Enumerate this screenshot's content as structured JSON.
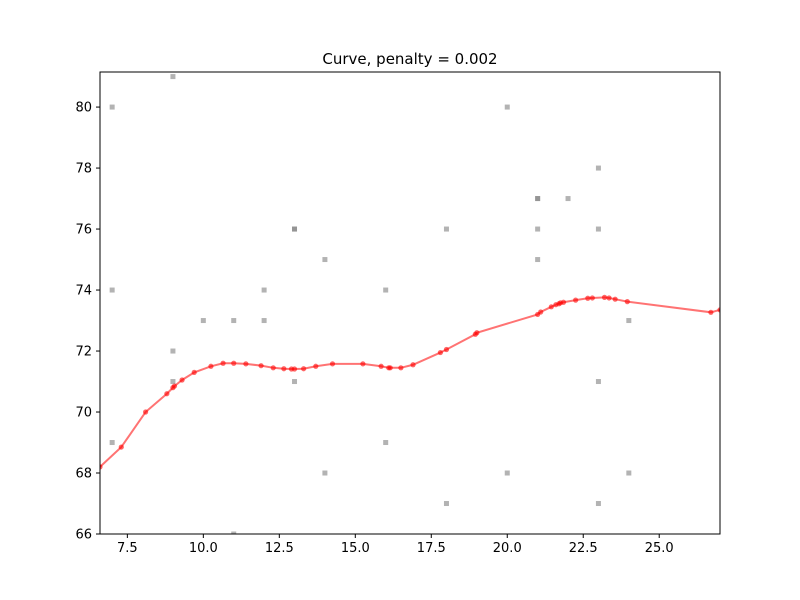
{
  "chart_data": {
    "type": "scatter",
    "title": "Curve, penalty = 0.002",
    "xlabel": "",
    "ylabel": "",
    "xlim": [
      6.6,
      27.0
    ],
    "ylim": [
      66,
      81.15
    ],
    "xticks": [
      7.5,
      10.0,
      12.5,
      15.0,
      17.5,
      20.0,
      22.5,
      25.0
    ],
    "xtick_labels": [
      "7.5",
      "10.0",
      "12.5",
      "15.0",
      "17.5",
      "20.0",
      "22.5",
      "25.0"
    ],
    "yticks": [
      66,
      68,
      70,
      72,
      74,
      76,
      78,
      80
    ],
    "ytick_labels": [
      "66",
      "68",
      "70",
      "72",
      "74",
      "76",
      "78",
      "80"
    ],
    "grid": false,
    "series": [
      {
        "kind": "scatter",
        "color": "#808080",
        "marker": "square",
        "points": [
          [
            7,
            80
          ],
          [
            7,
            74
          ],
          [
            7,
            69
          ],
          [
            9,
            81
          ],
          [
            9,
            72
          ],
          [
            9,
            71
          ],
          [
            10,
            73
          ],
          [
            11,
            73
          ],
          [
            11,
            66
          ],
          [
            12,
            74
          ],
          [
            12,
            73
          ],
          [
            13,
            76
          ],
          [
            13,
            76
          ],
          [
            13,
            71
          ],
          [
            14,
            75
          ],
          [
            14,
            68
          ],
          [
            16,
            74
          ],
          [
            16,
            69
          ],
          [
            18,
            76
          ],
          [
            18,
            67
          ],
          [
            20,
            80
          ],
          [
            20,
            68
          ],
          [
            21,
            77
          ],
          [
            21,
            77
          ],
          [
            21,
            76
          ],
          [
            21,
            75
          ],
          [
            22,
            77
          ],
          [
            23,
            78
          ],
          [
            23,
            76
          ],
          [
            23,
            71
          ],
          [
            23,
            67
          ],
          [
            24,
            73
          ],
          [
            24,
            68
          ]
        ]
      },
      {
        "kind": "line",
        "color": "#ff0000",
        "marker": "circle",
        "points": [
          [
            6.6,
            68.2
          ],
          [
            7.3,
            68.85
          ],
          [
            8.1,
            70.0
          ],
          [
            8.8,
            70.6
          ],
          [
            9.0,
            70.8
          ],
          [
            9.05,
            70.85
          ],
          [
            9.3,
            71.05
          ],
          [
            9.7,
            71.3
          ],
          [
            10.25,
            71.5
          ],
          [
            10.65,
            71.6
          ],
          [
            11.0,
            71.6
          ],
          [
            11.4,
            71.58
          ],
          [
            11.9,
            71.52
          ],
          [
            12.3,
            71.45
          ],
          [
            12.65,
            71.42
          ],
          [
            12.9,
            71.41
          ],
          [
            13.0,
            71.41
          ],
          [
            13.3,
            71.42
          ],
          [
            13.7,
            71.5
          ],
          [
            14.25,
            71.58
          ],
          [
            15.25,
            71.58
          ],
          [
            15.85,
            71.5
          ],
          [
            16.1,
            71.45
          ],
          [
            16.15,
            71.45
          ],
          [
            16.5,
            71.45
          ],
          [
            16.9,
            71.55
          ],
          [
            17.8,
            71.95
          ],
          [
            18.0,
            72.05
          ],
          [
            18.95,
            72.55
          ],
          [
            19.0,
            72.6
          ],
          [
            21.0,
            73.2
          ],
          [
            21.1,
            73.28
          ],
          [
            21.45,
            73.45
          ],
          [
            21.6,
            73.52
          ],
          [
            21.7,
            73.55
          ],
          [
            21.75,
            73.58
          ],
          [
            21.85,
            73.6
          ],
          [
            22.25,
            73.67
          ],
          [
            22.65,
            73.73
          ],
          [
            22.8,
            73.74
          ],
          [
            23.2,
            73.76
          ],
          [
            23.35,
            73.74
          ],
          [
            23.55,
            73.7
          ],
          [
            23.95,
            73.62
          ],
          [
            26.7,
            73.27
          ],
          [
            27.0,
            73.35
          ]
        ]
      }
    ]
  }
}
